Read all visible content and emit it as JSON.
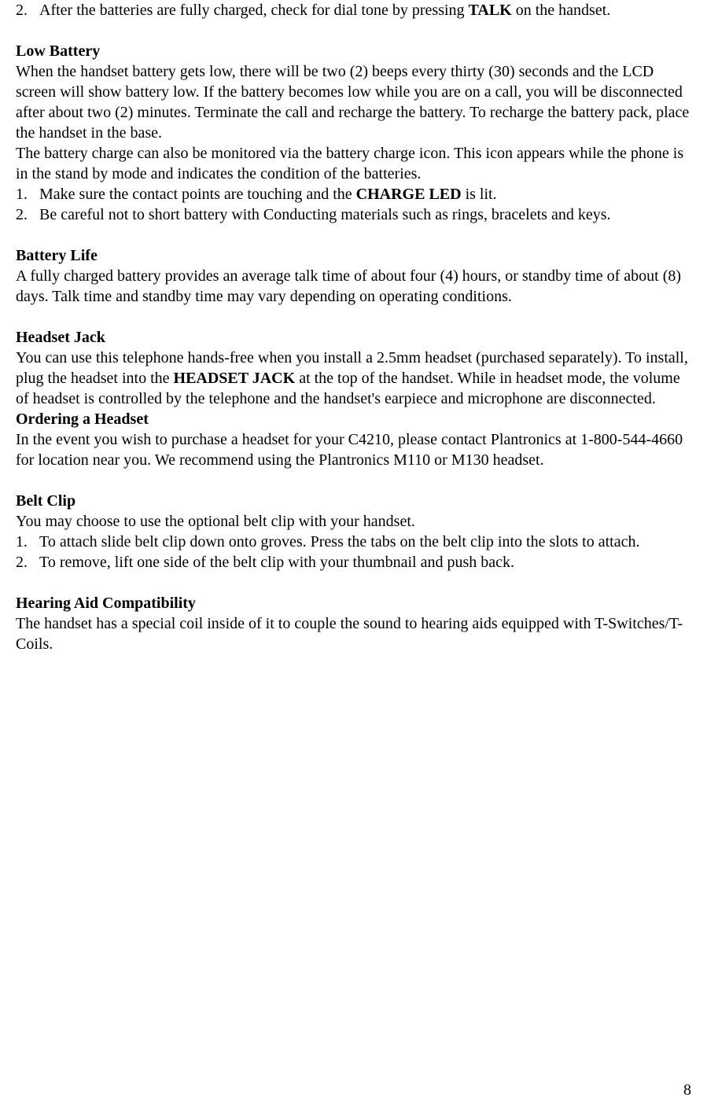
{
  "page": {
    "number": "8",
    "font_family": "Times New Roman",
    "font_size_pt": 15,
    "text_color": "#000000",
    "background_color": "#ffffff"
  },
  "top_list": {
    "item2_num": "2.",
    "item2_prefix": "After the batteries are fully charged, check for dial tone by pressing ",
    "item2_bold": "TALK",
    "item2_suffix": " on the handset."
  },
  "low_battery": {
    "heading": "Low Battery",
    "para1": "When the handset battery gets low, there will be two (2) beeps every thirty (30) seconds and the LCD screen will show battery low. If the battery becomes low while you are on a call, you will be disconnected after about two (2) minutes. Terminate the call and recharge the battery. To recharge the battery pack, place the handset in the base.",
    "para2": "The battery charge can also be monitored via the battery charge icon. This icon appears while the phone is in the stand by mode and indicates the condition of the batteries.",
    "item1_num": "1.",
    "item1_prefix": "Make sure the contact points are touching and the ",
    "item1_bold": "CHARGE LED",
    "item1_suffix": " is lit.",
    "item2_num": "2.",
    "item2_text": "Be careful not to short battery with Conducting materials such as rings, bracelets and keys."
  },
  "battery_life": {
    "heading": "Battery Life",
    "para": "A fully charged battery provides an average talk time of about four (4) hours, or standby time of about (8) days. Talk time and standby time may vary depending on operating conditions."
  },
  "headset_jack": {
    "heading": "Headset Jack",
    "para_prefix": "You can use this telephone hands-free when you install a 2.5mm headset (purchased separately).  To install, plug the headset into the ",
    "para_bold": "HEADSET JACK",
    "para_suffix": " at the top of the handset. While in headset mode, the volume of headset is controlled by the telephone and the handset's earpiece and microphone are disconnected."
  },
  "ordering_headset": {
    "heading": "Ordering a Headset",
    "para": "In the event you wish to purchase a headset for your C4210, please contact Plantronics at 1-800-544-4660 for location near you. We recommend using the Plantronics M110 or M130 headset."
  },
  "belt_clip": {
    "heading": "Belt Clip",
    "para": "You may choose to use the optional belt clip with your handset.",
    "item1_num": "1.",
    "item1_text": "To attach slide belt clip down onto groves. Press the tabs on the belt clip into the slots to attach.",
    "item2_num": "2.",
    "item2_text": "To remove, lift one side of the belt clip with your thumbnail and push back."
  },
  "hearing_aid": {
    "heading": "Hearing Aid Compatibility",
    "para": "The handset has a special coil inside of it to couple the sound to hearing aids equipped with T-Switches/T-Coils."
  }
}
